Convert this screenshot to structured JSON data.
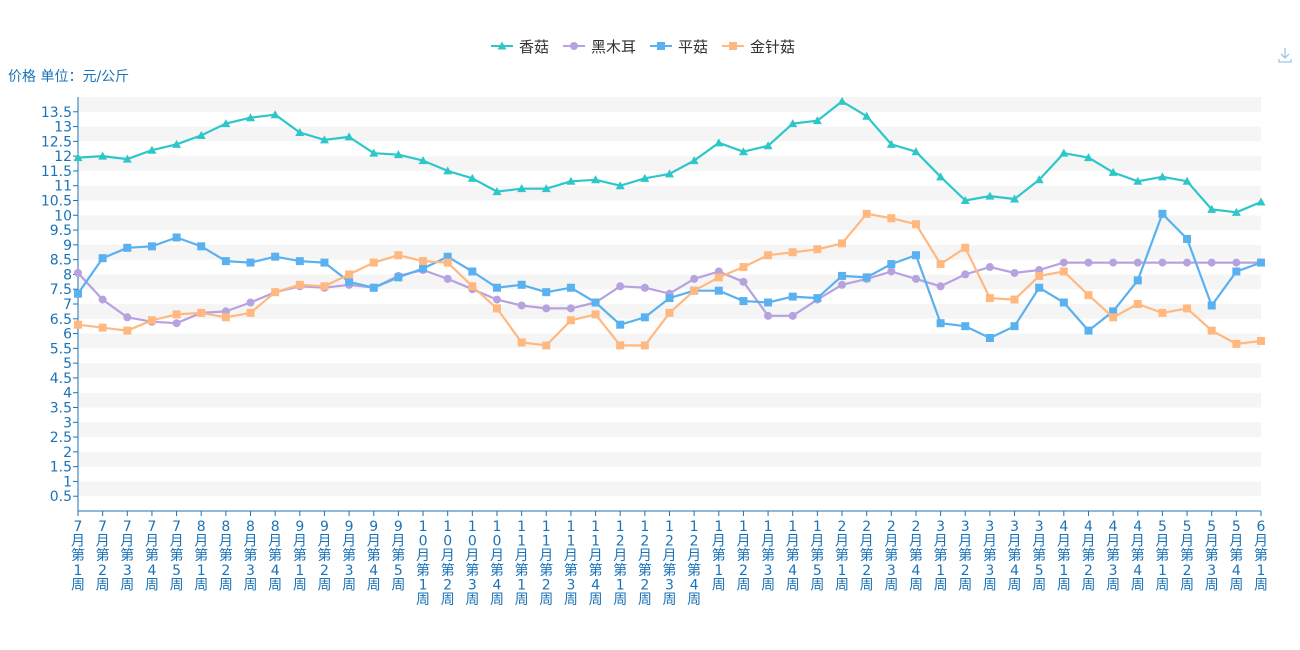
{
  "chart_data": {
    "type": "line",
    "ylabel": "价格 单位：元/公斤",
    "ylim": [
      0,
      14
    ],
    "yticks": [
      0.5,
      1,
      1.5,
      2,
      2.5,
      3,
      3.5,
      4,
      4.5,
      5,
      5.5,
      6,
      6.5,
      7,
      7.5,
      8,
      8.5,
      9,
      9.5,
      10,
      10.5,
      11,
      11.5,
      12,
      12.5,
      13,
      13.5
    ],
    "legend_position": "top-center",
    "categories": [
      "7月第1周",
      "7月第2周",
      "7月第3周",
      "7月第4周",
      "7月第5周",
      "8月第1周",
      "8月第2周",
      "8月第3周",
      "8月第4周",
      "9月第1周",
      "9月第2周",
      "9月第3周",
      "9月第4周",
      "9月第5周",
      "10月第1周",
      "10月第2周",
      "10月第3周",
      "10月第4周",
      "11月第1周",
      "11月第2周",
      "11月第3周",
      "11月第4周",
      "12月第1周",
      "12月第2周",
      "12月第3周",
      "12月第4周",
      "1月第1周",
      "1月第2周",
      "1月第3周",
      "1月第4周",
      "1月第5周",
      "2月第1周",
      "2月第2周",
      "2月第3周",
      "2月第4周",
      "3月第1周",
      "3月第2周",
      "3月第3周",
      "3月第4周",
      "3月第5周",
      "4月第1周",
      "4月第2周",
      "4月第3周",
      "4月第4周",
      "5月第1周",
      "5月第2周",
      "5月第3周",
      "5月第4周",
      "6月第1周"
    ],
    "series": [
      {
        "name": "香菇",
        "color": "#2ec7c9",
        "marker": "triangle",
        "values": [
          11.95,
          12.0,
          11.9,
          12.2,
          12.4,
          12.7,
          13.1,
          13.3,
          13.4,
          12.8,
          12.55,
          12.65,
          12.1,
          12.05,
          11.85,
          11.5,
          11.25,
          10.8,
          10.9,
          10.9,
          11.15,
          11.2,
          11.0,
          11.25,
          11.4,
          11.85,
          12.45,
          12.15,
          12.35,
          13.1,
          13.2,
          13.85,
          13.35,
          12.4,
          12.15,
          11.3,
          10.5,
          10.65,
          10.55,
          11.2,
          12.1,
          11.95,
          11.45,
          11.15,
          11.3,
          11.15,
          10.2,
          10.1,
          10.45
        ]
      },
      {
        "name": "黑木耳",
        "color": "#b6a2de",
        "marker": "circle",
        "values": [
          8.05,
          7.15,
          6.55,
          6.4,
          6.35,
          6.7,
          6.75,
          7.05,
          7.4,
          7.6,
          7.55,
          7.65,
          7.55,
          7.95,
          8.15,
          7.85,
          7.5,
          7.15,
          6.95,
          6.85,
          6.85,
          7.05,
          7.6,
          7.55,
          7.35,
          7.85,
          8.1,
          7.75,
          6.6,
          6.6,
          7.15,
          7.65,
          7.85,
          8.1,
          7.85,
          7.6,
          8.0,
          8.25,
          8.05,
          8.15,
          8.4,
          8.4,
          8.4,
          8.4,
          8.4,
          8.4,
          8.4,
          8.4,
          8.4
        ]
      },
      {
        "name": "平菇",
        "color": "#5ab1ef",
        "marker": "square",
        "values": [
          7.35,
          8.55,
          8.9,
          8.95,
          9.25,
          8.95,
          8.45,
          8.4,
          8.6,
          8.45,
          8.4,
          7.75,
          7.55,
          7.9,
          8.2,
          8.6,
          8.1,
          7.55,
          7.65,
          7.4,
          7.55,
          7.05,
          6.3,
          6.55,
          7.2,
          7.45,
          7.45,
          7.1,
          7.05,
          7.25,
          7.2,
          7.95,
          7.9,
          8.35,
          8.65,
          6.35,
          6.25,
          5.85,
          6.25,
          7.55,
          7.05,
          6.1,
          6.75,
          7.8,
          10.05,
          9.2,
          6.95,
          8.1,
          8.4
        ]
      },
      {
        "name": "金针菇",
        "color": "#ffb980",
        "marker": "square",
        "values": [
          6.3,
          6.2,
          6.1,
          6.45,
          6.65,
          6.7,
          6.55,
          6.7,
          7.4,
          7.65,
          7.6,
          8.0,
          8.4,
          8.65,
          8.45,
          8.4,
          7.6,
          6.85,
          5.7,
          5.6,
          6.45,
          6.65,
          5.6,
          5.6,
          6.7,
          7.45,
          7.9,
          8.25,
          8.65,
          8.75,
          8.85,
          9.05,
          10.05,
          9.9,
          9.7,
          8.35,
          8.9,
          7.2,
          7.15,
          7.95,
          8.1,
          7.3,
          6.55,
          7.0,
          6.7,
          6.85,
          6.1,
          5.65,
          5.75
        ]
      }
    ]
  }
}
